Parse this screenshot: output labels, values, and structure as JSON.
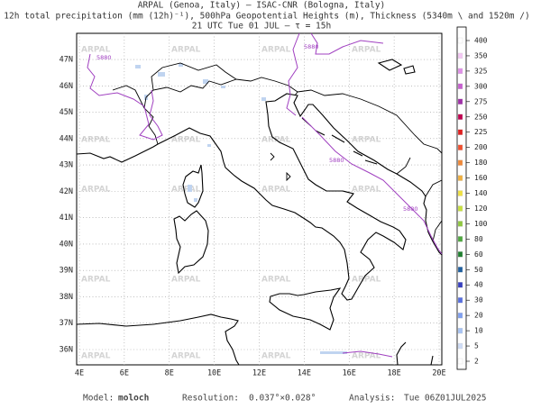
{
  "header": {
    "line1": "ARPAL (Genoa, Italy)  –  ISAC-CNR (Bologna, Italy)",
    "line2": "12h total precipitation (mm (12h)⁻¹), 500hPa Geopotential Heights (m), Thickness (5340m \\ and 1520m /)",
    "line3": "21 UTC Tue 01 JUL  –  τ = 15h"
  },
  "map": {
    "lon_labels": [
      "4E",
      "6E",
      "8E",
      "10E",
      "12E",
      "14E",
      "16E",
      "18E",
      "20E"
    ],
    "lat_labels": [
      "36N",
      "37N",
      "38N",
      "39N",
      "40N",
      "41N",
      "42N",
      "43N",
      "44N",
      "45N",
      "46N",
      "47N"
    ],
    "contour_labels": [
      "5880",
      "5880",
      "5880",
      "5880"
    ],
    "watermark": "ARPAL"
  },
  "colorbar": {
    "labels": [
      "400",
      "350",
      "325",
      "300",
      "275",
      "250",
      "225",
      "200",
      "180",
      "160",
      "140",
      "120",
      "100",
      "80",
      "60",
      "50",
      "40",
      "30",
      "20",
      "10",
      "5",
      "2"
    ],
    "colors": [
      "#ffffff",
      "#f4c8f4",
      "#e090e8",
      "#c860d0",
      "#a030a8",
      "#c00050",
      "#e02020",
      "#f05030",
      "#f08838",
      "#f0b040",
      "#f0e040",
      "#c8e040",
      "#90c840",
      "#50a840",
      "#208030",
      "#2060a0",
      "#3840c0",
      "#5870e0",
      "#80a0f0",
      "#a8c4f4",
      "#cfdcf6",
      "#ffffff"
    ]
  },
  "footer": {
    "model_label": "Model:",
    "model": "moloch",
    "resolution_label": "Resolution:",
    "resolution": "0.037°×0.028°",
    "analysis_label": "Analysis:",
    "analysis": "Tue 06Z01JUL2025"
  }
}
